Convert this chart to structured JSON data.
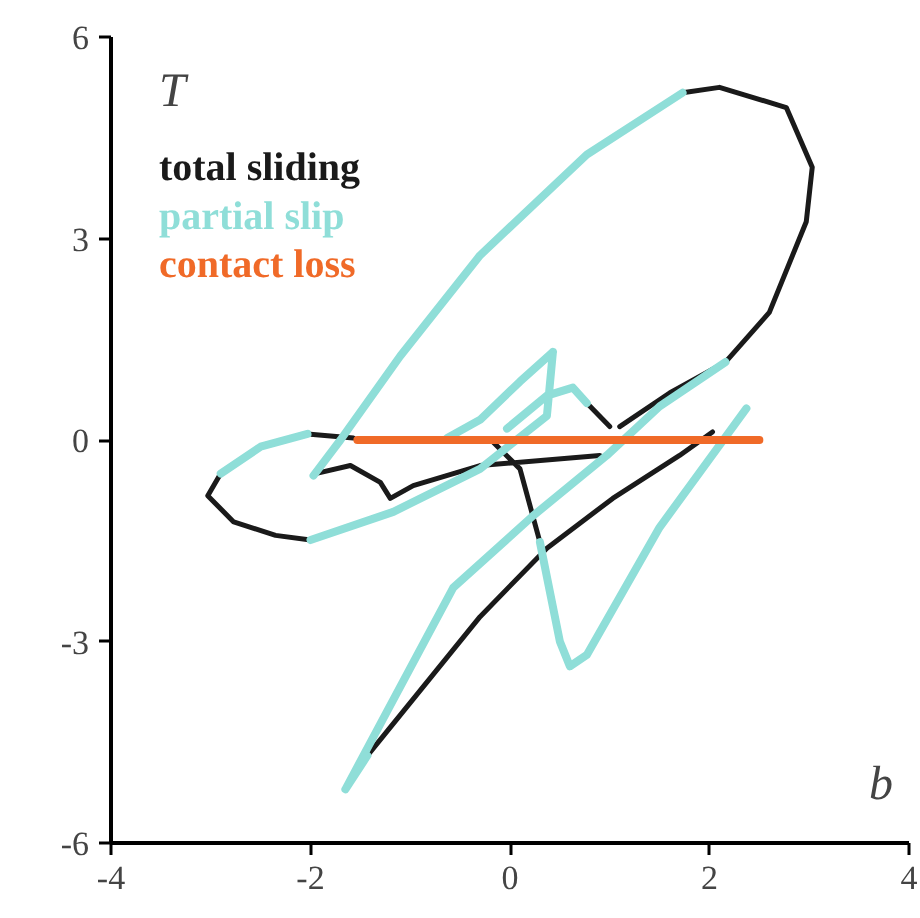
{
  "chart_data": {
    "type": "line",
    "xlabel": "b",
    "ylabel": "T",
    "xlim": [
      -4,
      4
    ],
    "ylim": [
      -6,
      6
    ],
    "xticks": [
      -4,
      -2,
      0,
      2,
      4
    ],
    "yticks": [
      -6,
      -3,
      0,
      3,
      6
    ],
    "grid": false,
    "legend": "top left",
    "marker": "none",
    "line_style": "solid",
    "series": [
      {
        "name": "total sliding",
        "color": "#1a1a1a",
        "x": [
          2.16,
          2.6,
          2.97,
          3.03,
          2.77,
          2.1,
          1.73,
          null,
          2.16,
          1.6,
          1.1,
          null,
          0.77,
          1.0,
          null,
          -2.9,
          -3.03,
          -2.77,
          -2.35,
          -2.0,
          null,
          -2.03,
          -1.57,
          null,
          -1.95,
          -1.6,
          -1.3,
          -1.2,
          -0.97,
          -0.3,
          0.9,
          null,
          -0.17,
          0.1,
          0.3,
          null,
          -1.43,
          -0.3,
          0.37,
          1.03,
          1.7,
          2.03
        ],
        "values": [
          1.16,
          1.9,
          3.25,
          4.06,
          4.95,
          5.25,
          5.17,
          null,
          1.16,
          0.7,
          0.2,
          null,
          0.55,
          0.2,
          null,
          -0.5,
          -0.83,
          -1.22,
          -1.42,
          -1.49,
          null,
          0.09,
          0.03,
          null,
          -0.5,
          -0.38,
          -0.63,
          -0.87,
          -0.68,
          -0.38,
          -0.23,
          null,
          -0.03,
          -0.43,
          -1.52,
          null,
          -4.7,
          -2.63,
          -1.61,
          -0.87,
          -0.23,
          0.12
        ]
      },
      {
        "name": "partial slip",
        "color": "#8fded8",
        "x": [
          1.73,
          0.77,
          -0.3,
          -1.1,
          -1.7,
          -1.97,
          null,
          -2.9,
          -2.5,
          -2.03,
          null,
          -2.0,
          -1.17,
          -0.3,
          0.37,
          0.43,
          null,
          -0.03,
          0.37,
          0.63,
          0.77,
          null,
          -0.63,
          -0.3,
          0.1,
          0.43,
          null,
          0.3,
          0.5,
          0.6,
          0.77,
          1.5,
          2.37,
          null,
          -1.65,
          -1.43,
          null,
          -1.65,
          -0.57,
          0.23,
          0.97,
          1.5,
          2.16
        ],
        "values": [
          5.17,
          4.25,
          2.75,
          1.25,
          0.0,
          -0.53,
          null,
          -0.5,
          -0.1,
          0.09,
          null,
          -1.49,
          -1.07,
          -0.43,
          0.36,
          1.31,
          null,
          0.17,
          0.66,
          0.78,
          0.55,
          null,
          0.03,
          0.3,
          0.87,
          1.31,
          null,
          -1.52,
          -3.0,
          -3.37,
          -3.2,
          -1.3,
          0.47,
          null,
          -5.2,
          -4.7,
          null,
          -5.2,
          -2.2,
          -1.13,
          -0.23,
          0.5,
          1.16
        ]
      },
      {
        "name": "contact loss",
        "color": "#f06a28",
        "x": [
          -1.53,
          2.5
        ],
        "values": [
          0,
          0
        ]
      }
    ]
  }
}
